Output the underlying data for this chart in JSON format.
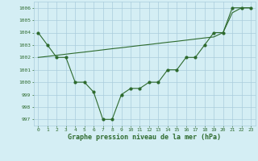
{
  "x": [
    0,
    1,
    2,
    3,
    4,
    5,
    6,
    7,
    8,
    9,
    10,
    11,
    12,
    13,
    14,
    15,
    16,
    17,
    18,
    19,
    20,
    21,
    22,
    23
  ],
  "y_actual": [
    1004,
    1003,
    1002,
    1002,
    1000,
    1000,
    999.2,
    997,
    997,
    999,
    999.5,
    999.5,
    1000,
    1000,
    1001,
    1001,
    1002,
    1002,
    1003,
    1004,
    1004,
    1006,
    1006,
    1006
  ],
  "y_trend": [
    1002,
    1002.08,
    1002.17,
    1002.26,
    1002.35,
    1002.43,
    1002.52,
    1002.61,
    1002.7,
    1002.78,
    1002.87,
    1002.96,
    1003.04,
    1003.13,
    1003.22,
    1003.3,
    1003.39,
    1003.48,
    1003.57,
    1003.65,
    1004.0,
    1005.6,
    1006.0,
    1006.0
  ],
  "line_color": "#2d6a2d",
  "bg_color": "#d4eef4",
  "grid_color": "#aaccdd",
  "xlabel": "Graphe pression niveau de la mer (hPa)",
  "ylim": [
    996.5,
    1006.5
  ],
  "xlim": [
    -0.5,
    23.5
  ],
  "yticks": [
    997,
    998,
    999,
    1000,
    1001,
    1002,
    1003,
    1004,
    1005,
    1006
  ],
  "xticks": [
    0,
    1,
    2,
    3,
    4,
    5,
    6,
    7,
    8,
    9,
    10,
    11,
    12,
    13,
    14,
    15,
    16,
    17,
    18,
    19,
    20,
    21,
    22,
    23
  ],
  "tick_fontsize": 4.5,
  "xlabel_fontsize": 6.0
}
